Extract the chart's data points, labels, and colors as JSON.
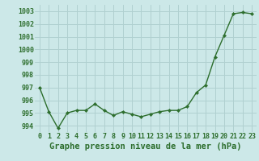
{
  "x": [
    0,
    1,
    2,
    3,
    4,
    5,
    6,
    7,
    8,
    9,
    10,
    11,
    12,
    13,
    14,
    15,
    16,
    17,
    18,
    19,
    20,
    21,
    22,
    23
  ],
  "y": [
    997.0,
    995.1,
    993.8,
    995.0,
    995.2,
    995.2,
    995.7,
    995.2,
    994.8,
    995.1,
    994.9,
    994.7,
    994.9,
    995.1,
    995.2,
    995.2,
    995.5,
    996.6,
    997.2,
    999.4,
    1001.1,
    1002.8,
    1002.9,
    1002.8
  ],
  "line_color": "#2d6e2d",
  "marker_color": "#2d6e2d",
  "bg_color": "#cce8e8",
  "grid_color": "#b0d0d0",
  "xlabel": "Graphe pression niveau de la mer (hPa)",
  "ylim": [
    993.5,
    1003.5
  ],
  "yticks": [
    994,
    995,
    996,
    997,
    998,
    999,
    1000,
    1001,
    1002,
    1003
  ],
  "xticks": [
    0,
    1,
    2,
    3,
    4,
    5,
    6,
    7,
    8,
    9,
    10,
    11,
    12,
    13,
    14,
    15,
    16,
    17,
    18,
    19,
    20,
    21,
    22,
    23
  ],
  "tick_fontsize": 6.0,
  "xlabel_fontsize": 7.5,
  "line_width": 1.0,
  "marker_size": 2.2
}
